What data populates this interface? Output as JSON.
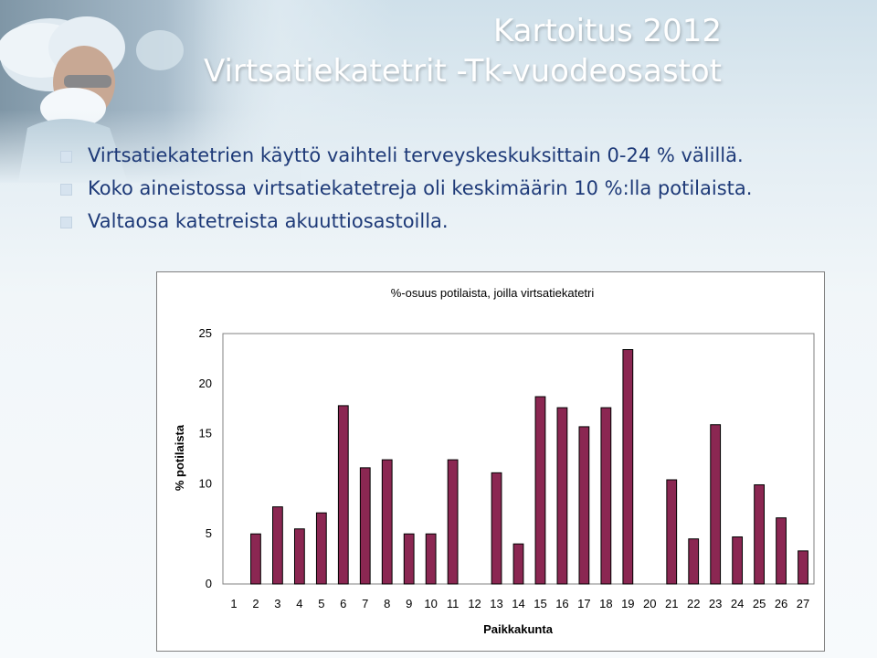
{
  "slide": {
    "title_line1": "Kartoitus 2012",
    "title_line2": "Virtsatiekatetrit -Tk-vuodeosastot",
    "bullets": [
      "Virtsatiekatetrien käyttö vaihteli terveyskeskuksittain 0-24 % välillä.",
      "Koko aineistossa virtsatiekatetreja oli keskimäärin 10 %:lla potilaista.",
      "Valtaosa katetreista akuuttiosastoilla."
    ],
    "title_color": "#ffffff",
    "bullet_text_color": "#1e3a78"
  },
  "chart_data": {
    "type": "bar",
    "title": "%-osuus potilaista, joilla virtsatiekatetri",
    "xlabel": "Paikkakunta",
    "ylabel": "% potilaista",
    "ylim": [
      0,
      25
    ],
    "yticks": [
      0,
      5,
      10,
      15,
      20,
      25
    ],
    "categories": [
      "1",
      "2",
      "3",
      "4",
      "5",
      "6",
      "7",
      "8",
      "9",
      "10",
      "11",
      "12",
      "13",
      "14",
      "15",
      "16",
      "17",
      "18",
      "19",
      "20",
      "21",
      "22",
      "23",
      "24",
      "25",
      "26",
      "27"
    ],
    "values": [
      0,
      5.0,
      7.7,
      5.5,
      7.1,
      17.8,
      11.6,
      12.4,
      5.0,
      5.0,
      12.4,
      0,
      11.1,
      4.0,
      18.7,
      17.6,
      15.7,
      17.6,
      23.4,
      0,
      10.4,
      4.5,
      15.9,
      4.7,
      9.9,
      6.6,
      3.3
    ],
    "bar_color": "#8b2752",
    "grid": false,
    "legend": "none"
  }
}
